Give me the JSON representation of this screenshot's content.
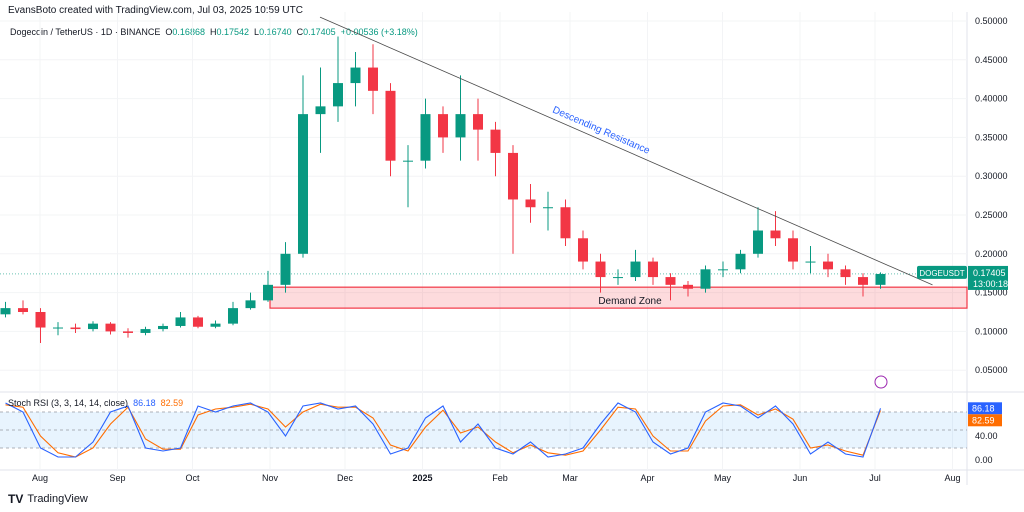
{
  "credit": "EvansBoto created with TradingView.com, Jul 03, 2025 10:59 UTC",
  "legend": {
    "symbol": "Dogecoin / TetherUS · 1D · BINANCE",
    "o_label": "O",
    "o": "0.16868",
    "h_label": "H",
    "h": "0.17542",
    "l_label": "L",
    "l": "0.16740",
    "c_label": "C",
    "c": "0.17405",
    "change": "+0.00536 (+3.18%)"
  },
  "price_tag": {
    "ticker": "DOGEUSDT",
    "price": "0.17405",
    "countdown": "13:00:18"
  },
  "annotations": {
    "trendline": "Descending Resistance",
    "zone": "Demand Zone"
  },
  "stoch": {
    "label": "Stoch RSI (3, 3, 14, 14, close)",
    "k": "86.18",
    "d": "82.59"
  },
  "footer": "TradingView",
  "colors": {
    "up": "#089981",
    "down": "#f23645",
    "k": "#2962ff",
    "d": "#ff6d00",
    "zone": "#f23645"
  },
  "chart_data": [
    {
      "type": "candlestick",
      "title": "Dogecoin / TetherUS · 1D · BINANCE",
      "yaxis_ticks": [
        "0.50000",
        "0.45000",
        "0.40000",
        "0.35000",
        "0.30000",
        "0.25000",
        "0.20000",
        "0.15000",
        "0.10000",
        "0.05000"
      ],
      "ylim": [
        0.02,
        0.505
      ],
      "xaxis_ticks": [
        "Aug",
        "Sep",
        "Oct",
        "Nov",
        "Dec",
        "2025",
        "Feb",
        "Mar",
        "Apr",
        "May",
        "Jun",
        "Jul",
        "Aug"
      ],
      "dates": [
        "2024-07-15",
        "2024-07-22",
        "2024-07-29",
        "2024-08-05",
        "2024-08-12",
        "2024-08-19",
        "2024-08-26",
        "2024-09-02",
        "2024-09-09",
        "2024-09-16",
        "2024-09-23",
        "2024-09-30",
        "2024-10-07",
        "2024-10-14",
        "2024-10-21",
        "2024-10-28",
        "2024-11-04",
        "2024-11-11",
        "2024-11-18",
        "2024-11-25",
        "2024-12-02",
        "2024-12-09",
        "2024-12-16",
        "2024-12-23",
        "2024-12-30",
        "2025-01-06",
        "2025-01-13",
        "2025-01-20",
        "2025-01-27",
        "2025-02-03",
        "2025-02-10",
        "2025-02-17",
        "2025-02-24",
        "2025-03-03",
        "2025-03-10",
        "2025-03-17",
        "2025-03-24",
        "2025-03-31",
        "2025-04-07",
        "2025-04-14",
        "2025-04-21",
        "2025-04-28",
        "2025-05-05",
        "2025-05-12",
        "2025-05-19",
        "2025-05-26",
        "2025-06-02",
        "2025-06-09",
        "2025-06-16",
        "2025-06-23",
        "2025-06-30"
      ],
      "open": [
        0.122,
        0.13,
        0.125,
        0.105,
        0.105,
        0.103,
        0.11,
        0.1,
        0.098,
        0.103,
        0.107,
        0.118,
        0.106,
        0.11,
        0.13,
        0.14,
        0.16,
        0.2,
        0.38,
        0.39,
        0.42,
        0.44,
        0.41,
        0.32,
        0.32,
        0.38,
        0.35,
        0.38,
        0.36,
        0.33,
        0.27,
        0.26,
        0.26,
        0.22,
        0.19,
        0.17,
        0.17,
        0.19,
        0.17,
        0.16,
        0.155,
        0.18,
        0.18,
        0.2,
        0.23,
        0.22,
        0.19,
        0.19,
        0.18,
        0.17,
        0.16
      ],
      "high": [
        0.138,
        0.14,
        0.13,
        0.112,
        0.11,
        0.113,
        0.112,
        0.104,
        0.106,
        0.11,
        0.125,
        0.12,
        0.114,
        0.138,
        0.15,
        0.178,
        0.215,
        0.43,
        0.44,
        0.48,
        0.46,
        0.47,
        0.42,
        0.34,
        0.4,
        0.39,
        0.43,
        0.4,
        0.37,
        0.34,
        0.29,
        0.28,
        0.27,
        0.23,
        0.2,
        0.18,
        0.205,
        0.195,
        0.175,
        0.165,
        0.185,
        0.19,
        0.205,
        0.26,
        0.255,
        0.23,
        0.21,
        0.2,
        0.185,
        0.175,
        0.176
      ],
      "low": [
        0.118,
        0.122,
        0.085,
        0.095,
        0.098,
        0.1,
        0.096,
        0.092,
        0.095,
        0.1,
        0.105,
        0.104,
        0.104,
        0.108,
        0.128,
        0.138,
        0.15,
        0.195,
        0.33,
        0.37,
        0.39,
        0.38,
        0.3,
        0.26,
        0.31,
        0.33,
        0.32,
        0.32,
        0.3,
        0.2,
        0.24,
        0.23,
        0.21,
        0.18,
        0.15,
        0.16,
        0.165,
        0.16,
        0.14,
        0.145,
        0.15,
        0.17,
        0.175,
        0.195,
        0.21,
        0.18,
        0.175,
        0.17,
        0.16,
        0.145,
        0.155
      ],
      "close": [
        0.13,
        0.125,
        0.105,
        0.105,
        0.103,
        0.11,
        0.1,
        0.098,
        0.103,
        0.107,
        0.118,
        0.106,
        0.11,
        0.13,
        0.14,
        0.16,
        0.2,
        0.38,
        0.39,
        0.42,
        0.44,
        0.41,
        0.32,
        0.32,
        0.38,
        0.35,
        0.38,
        0.36,
        0.33,
        0.27,
        0.26,
        0.26,
        0.22,
        0.19,
        0.17,
        0.17,
        0.19,
        0.17,
        0.16,
        0.155,
        0.18,
        0.18,
        0.2,
        0.23,
        0.22,
        0.19,
        0.19,
        0.18,
        0.17,
        0.16,
        0.174
      ],
      "trendline": {
        "label": "Descending Resistance",
        "start": [
          "2024-11-21",
          0.505
        ],
        "end": [
          "2025-07-24",
          0.16
        ]
      },
      "zone": {
        "label": "Demand Zone",
        "top": 0.157,
        "bottom": 0.13,
        "start": "2024-11-01"
      },
      "last_price": 0.17405
    },
    {
      "type": "line",
      "title": "Stoch RSI (3, 3, 14, 14, close)",
      "ylim": [
        0,
        100
      ],
      "yaxis_ticks": [
        "40.00",
        "0.00"
      ],
      "bands": [
        80,
        50,
        20
      ],
      "series": [
        {
          "name": "K",
          "values": [
            95,
            80,
            20,
            5,
            5,
            30,
            80,
            90,
            20,
            15,
            20,
            90,
            80,
            90,
            95,
            80,
            40,
            90,
            95,
            85,
            90,
            60,
            10,
            20,
            70,
            90,
            30,
            60,
            20,
            10,
            30,
            5,
            10,
            20,
            60,
            95,
            80,
            30,
            10,
            20,
            80,
            95,
            90,
            70,
            90,
            60,
            10,
            30,
            10,
            5,
            86.18
          ]
        },
        {
          "name": "D",
          "values": [
            92,
            88,
            40,
            12,
            5,
            20,
            60,
            88,
            35,
            18,
            18,
            75,
            85,
            88,
            93,
            85,
            55,
            80,
            93,
            88,
            88,
            70,
            25,
            15,
            55,
            83,
            45,
            55,
            30,
            12,
            25,
            12,
            8,
            15,
            50,
            88,
            85,
            40,
            15,
            15,
            65,
            90,
            92,
            75,
            85,
            68,
            20,
            25,
            15,
            8,
            82.59
          ]
        }
      ]
    }
  ]
}
